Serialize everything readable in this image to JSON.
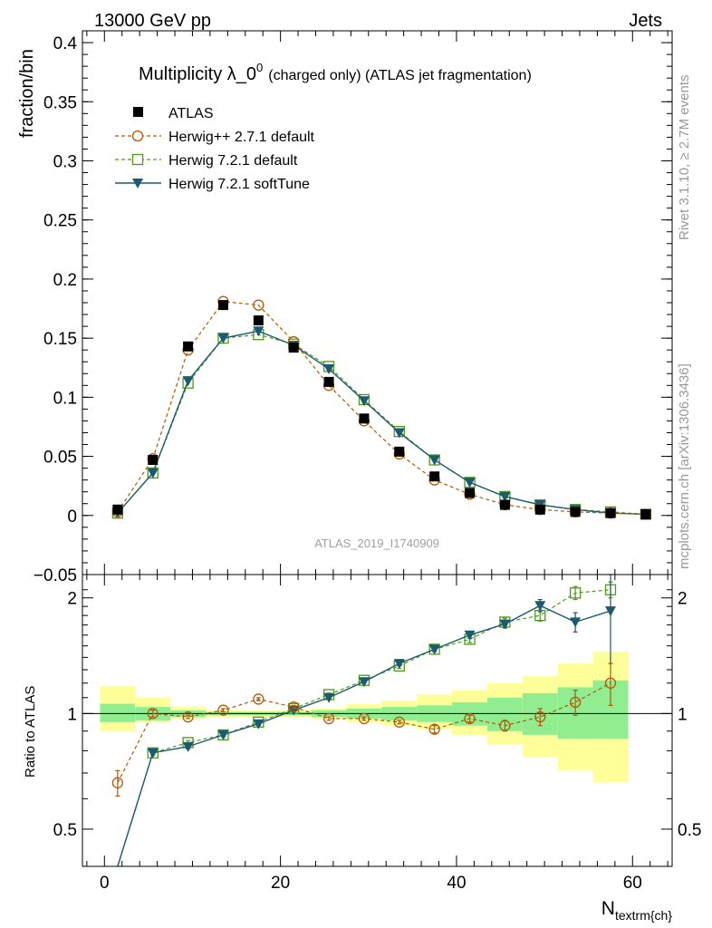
{
  "header": {
    "left": "13000 GeV pp",
    "right": "Jets"
  },
  "side_labels": {
    "rivet": "Rivet 3.1.10, ≥ 2.7M events",
    "mcplots": "mcplots.cern.ch [arXiv:1306.3436]"
  },
  "chart_data": {
    "type": "line",
    "title_main": "Multiplicity λ_0",
    "title_sup": "0",
    "title_suffix": "(charged only) (ATLAS jet fragmentation)",
    "watermark": "ATLAS_2019_I1740909",
    "ylabel": "fraction/bin",
    "ratio_ylabel": "Ratio to ATLAS",
    "xlabel_main": "N",
    "xlabel_sub": "textrm{ch}",
    "xlim": [
      -2.5,
      64.5
    ],
    "ylim": [
      -0.05,
      0.41
    ],
    "ratio_ylim": [
      0.4,
      2.3
    ],
    "ratio_log_scale": true,
    "x_ticks": [
      "0",
      "20",
      "40",
      "60"
    ],
    "y_ticks": [
      "−0.05",
      "0",
      "0.05",
      "0.1",
      "0.15",
      "0.2",
      "0.25",
      "0.3",
      "0.35",
      "0.4"
    ],
    "ratio_ticks": [
      "0.5",
      "1",
      "2"
    ],
    "x": [
      1.5,
      5.5,
      9.5,
      13.5,
      17.5,
      21.5,
      25.5,
      29.5,
      33.5,
      37.5,
      41.5,
      45.5,
      49.5,
      53.5,
      57.5,
      61.5
    ],
    "legend_placement": "top-left",
    "series": [
      {
        "name": "ATLAS",
        "color": "#000000",
        "values": [
          0.005,
          0.047,
          0.143,
          0.178,
          0.165,
          0.142,
          0.113,
          0.082,
          0.054,
          0.033,
          0.019,
          0.009,
          0.005,
          0.003,
          0.002,
          0.001
        ]
      },
      {
        "name": "Herwig++ 2.7.1 default",
        "color": "#b35806",
        "values": [
          0.003,
          0.048,
          0.14,
          0.181,
          0.178,
          0.147,
          0.11,
          0.08,
          0.052,
          0.03,
          0.018,
          0.009,
          0.005,
          0.003,
          0.002,
          0.001
        ],
        "ratio": [
          0.66,
          1.0,
          0.98,
          1.02,
          1.09,
          1.04,
          0.97,
          0.97,
          0.95,
          0.91,
          0.97,
          0.93,
          0.98,
          1.07,
          1.2
        ],
        "ratio_err": [
          0.05,
          0.02,
          0.01,
          0.01,
          0.01,
          0.01,
          0.01,
          0.01,
          0.01,
          0.02,
          0.02,
          0.03,
          0.05,
          0.08,
          0.15
        ]
      },
      {
        "name": "Herwig 7.2.1 default",
        "color": "#4d9a1a",
        "values": [
          0.002,
          0.036,
          0.112,
          0.15,
          0.153,
          0.145,
          0.126,
          0.098,
          0.071,
          0.047,
          0.028,
          0.016,
          0.009,
          0.005,
          0.003,
          0.001
        ],
        "ratio": [
          0.3,
          0.79,
          0.84,
          0.88,
          0.95,
          1.03,
          1.12,
          1.22,
          1.33,
          1.47,
          1.56,
          1.73,
          1.8,
          2.06,
          2.1
        ],
        "ratio_err": [
          0.02,
          0.01,
          0.01,
          0.01,
          0.01,
          0.01,
          0.01,
          0.01,
          0.02,
          0.02,
          0.03,
          0.04,
          0.06,
          0.08,
          0.1
        ]
      },
      {
        "name": "Herwig 7.2.1 softTune",
        "color": "#1b5a6f",
        "values": [
          0.002,
          0.036,
          0.114,
          0.15,
          0.156,
          0.144,
          0.124,
          0.097,
          0.07,
          0.047,
          0.028,
          0.016,
          0.009,
          0.005,
          0.002,
          0.001
        ],
        "ratio": [
          0.35,
          0.79,
          0.82,
          0.88,
          0.94,
          1.02,
          1.1,
          1.21,
          1.35,
          1.47,
          1.6,
          1.71,
          1.91,
          1.73,
          1.85
        ],
        "ratio_err": [
          0.02,
          0.01,
          0.01,
          0.01,
          0.01,
          0.01,
          0.01,
          0.01,
          0.02,
          0.02,
          0.03,
          0.04,
          0.07,
          0.1,
          0.5
        ]
      }
    ],
    "uncertainty_bands": {
      "x_edges": [
        -0.5,
        3.5,
        7.5,
        11.5,
        15.5,
        19.5,
        23.5,
        27.5,
        31.5,
        35.5,
        39.5,
        43.5,
        47.5,
        51.5,
        55.5,
        59.5
      ],
      "green_lo": [
        0.95,
        0.96,
        0.98,
        0.99,
        0.99,
        0.99,
        0.98,
        0.97,
        0.96,
        0.95,
        0.93,
        0.9,
        0.88,
        0.86,
        0.86
      ],
      "green_hi": [
        1.06,
        1.04,
        1.02,
        1.01,
        1.01,
        1.01,
        1.02,
        1.03,
        1.04,
        1.05,
        1.07,
        1.1,
        1.13,
        1.17,
        1.22
      ],
      "yellow_lo": [
        0.9,
        0.95,
        0.97,
        0.98,
        0.98,
        0.98,
        0.97,
        0.95,
        0.93,
        0.91,
        0.88,
        0.83,
        0.77,
        0.71,
        0.66
      ],
      "yellow_hi": [
        1.18,
        1.1,
        1.04,
        1.02,
        1.02,
        1.02,
        1.03,
        1.06,
        1.08,
        1.12,
        1.15,
        1.2,
        1.25,
        1.35,
        1.45
      ],
      "green_color": "#90ee90",
      "yellow_color": "#ffff99"
    }
  }
}
